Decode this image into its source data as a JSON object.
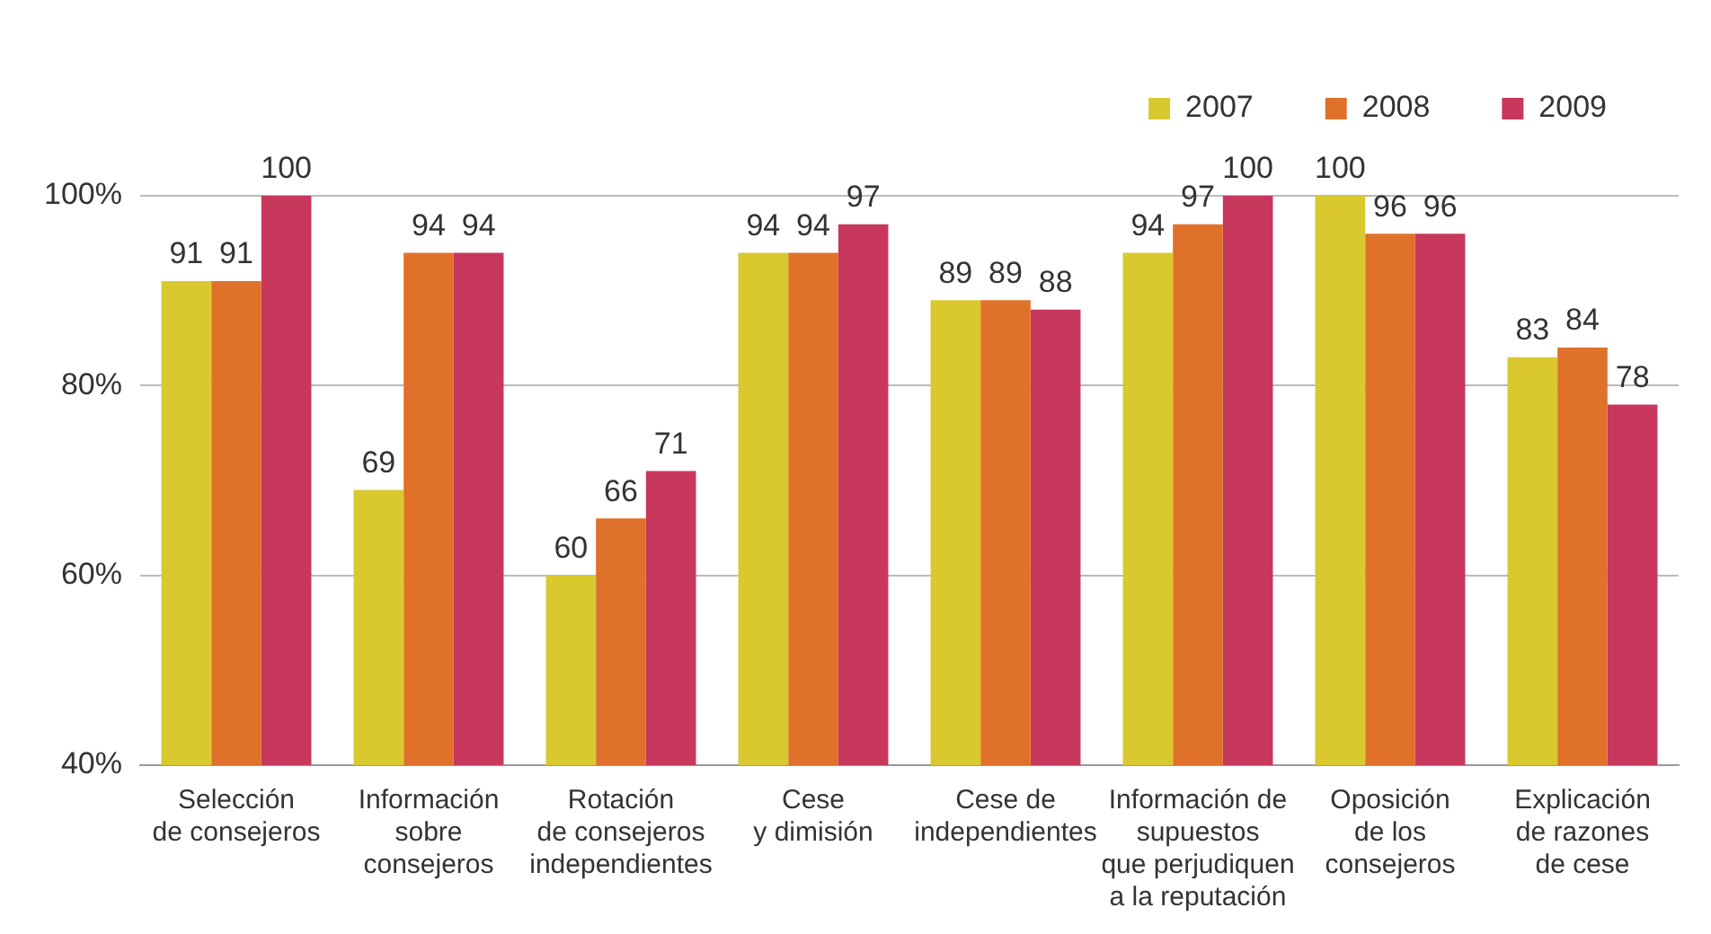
{
  "chart_data": {
    "type": "bar",
    "categories": [
      "Selección\nde consejeros",
      "Información\nsobre\nconsejeros",
      "Rotación\nde consejeros\nindependientes",
      "Cese\ny dimisión",
      "Cese de\nindependientes",
      "Información de\nsupuestos\nque perjudiquen\na la reputación",
      "Oposición\nde los\nconsejeros",
      "Explicación\nde razones\nde cese"
    ],
    "series": [
      {
        "name": "2007",
        "color": "#d9c82e",
        "values": [
          91,
          69,
          60,
          94,
          89,
          94,
          100,
          83
        ]
      },
      {
        "name": "2008",
        "color": "#e0712b",
        "values": [
          91,
          94,
          66,
          94,
          89,
          97,
          96,
          84
        ]
      },
      {
        "name": "2009",
        "color": "#c8375c",
        "values": [
          100,
          94,
          71,
          97,
          88,
          100,
          96,
          78
        ]
      }
    ],
    "ylim": [
      40,
      100
    ],
    "yticks": [
      {
        "value": 40,
        "label": "40%"
      },
      {
        "value": 60,
        "label": "60%"
      },
      {
        "value": 80,
        "label": "80%"
      },
      {
        "value": 100,
        "label": "100%"
      }
    ],
    "grid": "y",
    "legend": "top right",
    "data_labels": true
  }
}
